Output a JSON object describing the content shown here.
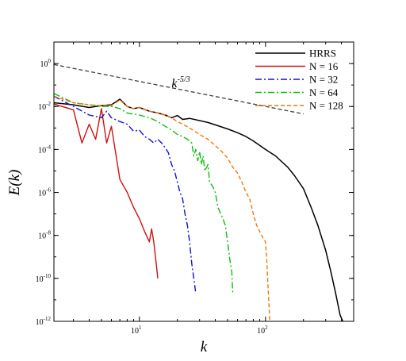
{
  "chart_data": {
    "type": "line",
    "xlabel": "k",
    "ylabel": "E(k)",
    "x_scale": "log",
    "y_scale": "log",
    "xlim": [
      2.1,
      500
    ],
    "ylim": [
      1e-12,
      10
    ],
    "x_ticks": [
      {
        "value": 10,
        "base": "10",
        "exp": "1"
      },
      {
        "value": 100,
        "base": "10",
        "exp": "2"
      }
    ],
    "y_ticks": [
      {
        "value": 1,
        "base": "10",
        "exp": "0"
      },
      {
        "value": 0.01,
        "base": "10",
        "exp": "-2"
      },
      {
        "value": 0.0001,
        "base": "10",
        "exp": "-4"
      },
      {
        "value": 1e-06,
        "base": "10",
        "exp": "-6"
      },
      {
        "value": 1e-08,
        "base": "10",
        "exp": "-8"
      },
      {
        "value": 1e-10,
        "base": "10",
        "exp": "-10"
      },
      {
        "value": 1e-12,
        "base": "10",
        "exp": "-12"
      }
    ],
    "legend_position": "top-right",
    "grid": false,
    "annotation": {
      "base": "k",
      "exp": "-5/3",
      "x": 18,
      "y": 0.08
    },
    "reference_line": {
      "name": "k^-5/3",
      "points": [
        [
          2.1,
          0.9
        ],
        [
          200,
          0.0045
        ]
      ],
      "color": "#404040",
      "dash": "5,3"
    },
    "series": [
      {
        "name": "HRRS",
        "color": "#000000",
        "dash": "",
        "width": 1.5,
        "points": [
          [
            2.1,
            0.015
          ],
          [
            3,
            0.012
          ],
          [
            4,
            0.009
          ],
          [
            5,
            0.011
          ],
          [
            6,
            0.012
          ],
          [
            7,
            0.022
          ],
          [
            8,
            0.01
          ],
          [
            9,
            0.008
          ],
          [
            10,
            0.009
          ],
          [
            12,
            0.006
          ],
          [
            14,
            0.005
          ],
          [
            16,
            0.004
          ],
          [
            18,
            0.003
          ],
          [
            20,
            0.0038
          ],
          [
            22,
            0.0025
          ],
          [
            25,
            0.0028
          ],
          [
            30,
            0.0022
          ],
          [
            35,
            0.0018
          ],
          [
            40,
            0.0014
          ],
          [
            50,
            0.0009
          ],
          [
            60,
            0.0006
          ],
          [
            70,
            0.0004
          ],
          [
            80,
            0.00025
          ],
          [
            100,
            0.0001
          ],
          [
            120,
            5e-05
          ],
          [
            150,
            1.5e-05
          ],
          [
            170,
            6e-06
          ],
          [
            200,
            1.5e-06
          ],
          [
            230,
            2e-07
          ],
          [
            260,
            3e-08
          ],
          [
            300,
            2e-09
          ],
          [
            330,
            2e-10
          ],
          [
            360,
            2e-11
          ],
          [
            390,
            2e-12
          ],
          [
            410,
            1e-12
          ]
        ]
      },
      {
        "name": "N = 16",
        "color": "#cc1111",
        "dash": "",
        "width": 1.4,
        "points": [
          [
            2.1,
            0.013
          ],
          [
            3,
            0.007
          ],
          [
            3.5,
            0.0002
          ],
          [
            4,
            0.0015
          ],
          [
            4.5,
            0.0003
          ],
          [
            5,
            0.008
          ],
          [
            5.5,
            0.0002
          ],
          [
            6,
            0.0012
          ],
          [
            7,
            4e-06
          ],
          [
            8,
            1e-06
          ],
          [
            9,
            2e-07
          ],
          [
            10,
            6e-08
          ],
          [
            11,
            1.5e-08
          ],
          [
            12,
            5e-09
          ],
          [
            12.5,
            2e-08
          ],
          [
            13,
            5e-09
          ],
          [
            13.6,
            5e-10
          ],
          [
            14,
            1e-10
          ]
        ]
      },
      {
        "name": "N = 32",
        "color": "#1111cc",
        "dash": "8,3,2,3",
        "width": 1.4,
        "points": [
          [
            2.1,
            0.03
          ],
          [
            3,
            0.01
          ],
          [
            4,
            0.004
          ],
          [
            5,
            0.003
          ],
          [
            5.5,
            0.006
          ],
          [
            6,
            0.003
          ],
          [
            7,
            0.002
          ],
          [
            8,
            0.0015
          ],
          [
            9,
            0.0007
          ],
          [
            10,
            0.0008
          ],
          [
            11,
            0.0004
          ],
          [
            12,
            0.0003
          ],
          [
            13,
            0.0002
          ],
          [
            14,
            0.0003
          ],
          [
            15,
            0.0002
          ],
          [
            16,
            0.00012
          ],
          [
            17,
            7e-05
          ],
          [
            18,
            2e-05
          ],
          [
            19,
            1e-05
          ],
          [
            20,
            3e-06
          ],
          [
            21,
            1e-06
          ],
          [
            22,
            5e-07
          ],
          [
            23,
            1e-07
          ],
          [
            24,
            3e-08
          ],
          [
            25,
            5e-09
          ],
          [
            26,
            5e-10
          ],
          [
            27,
            1e-10
          ],
          [
            28,
            2e-11
          ]
        ]
      },
      {
        "name": "N = 64",
        "color": "#11bb11",
        "dash": "8,3,2,3",
        "width": 1.4,
        "points": [
          [
            2.1,
            0.04
          ],
          [
            3,
            0.015
          ],
          [
            4,
            0.012
          ],
          [
            5,
            0.01
          ],
          [
            6,
            0.01
          ],
          [
            7,
            0.008
          ],
          [
            8,
            0.005
          ],
          [
            10,
            0.004
          ],
          [
            12,
            0.003
          ],
          [
            14,
            0.002
          ],
          [
            16,
            0.0012
          ],
          [
            18,
            0.0008
          ],
          [
            20,
            0.0005
          ],
          [
            22,
            0.0004
          ],
          [
            24,
            0.0003
          ],
          [
            26,
            0.0002
          ],
          [
            27,
            5e-05
          ],
          [
            28,
            0.0001
          ],
          [
            29,
            3e-05
          ],
          [
            30,
            8e-05
          ],
          [
            31,
            2e-05
          ],
          [
            32,
            5e-05
          ],
          [
            33,
            1e-05
          ],
          [
            35,
            2e-05
          ],
          [
            36,
            3e-06
          ],
          [
            38,
            2e-06
          ],
          [
            40,
            1e-06
          ],
          [
            42,
            2e-07
          ],
          [
            45,
            8e-08
          ],
          [
            48,
            3e-08
          ],
          [
            50,
            5e-09
          ],
          [
            52,
            8e-10
          ],
          [
            54,
            2e-10
          ],
          [
            55,
            2e-11
          ]
        ]
      },
      {
        "name": "N = 128",
        "color": "#ee7711",
        "dash": "5,3",
        "width": 1.4,
        "points": [
          [
            2.1,
            0.03
          ],
          [
            3,
            0.015
          ],
          [
            4,
            0.012
          ],
          [
            5,
            0.011
          ],
          [
            6,
            0.011
          ],
          [
            7,
            0.02
          ],
          [
            8,
            0.01
          ],
          [
            9,
            0.008
          ],
          [
            10,
            0.009
          ],
          [
            12,
            0.006
          ],
          [
            14,
            0.005
          ],
          [
            16,
            0.004
          ],
          [
            18,
            0.003
          ],
          [
            20,
            0.002
          ],
          [
            22,
            0.0015
          ],
          [
            25,
            0.001
          ],
          [
            30,
            0.0005
          ],
          [
            35,
            0.0003
          ],
          [
            40,
            0.00015
          ],
          [
            45,
            8e-05
          ],
          [
            50,
            4e-05
          ],
          [
            55,
            1.5e-05
          ],
          [
            60,
            8e-06
          ],
          [
            65,
            3e-06
          ],
          [
            70,
            1e-06
          ],
          [
            75,
            5e-07
          ],
          [
            80,
            1e-07
          ],
          [
            85,
            3e-08
          ],
          [
            90,
            1.5e-08
          ],
          [
            95,
            8e-09
          ],
          [
            100,
            5e-09
          ],
          [
            102,
            1e-09
          ],
          [
            104,
            1e-10
          ],
          [
            106,
            1e-11
          ],
          [
            108,
            1e-12
          ]
        ]
      }
    ]
  }
}
